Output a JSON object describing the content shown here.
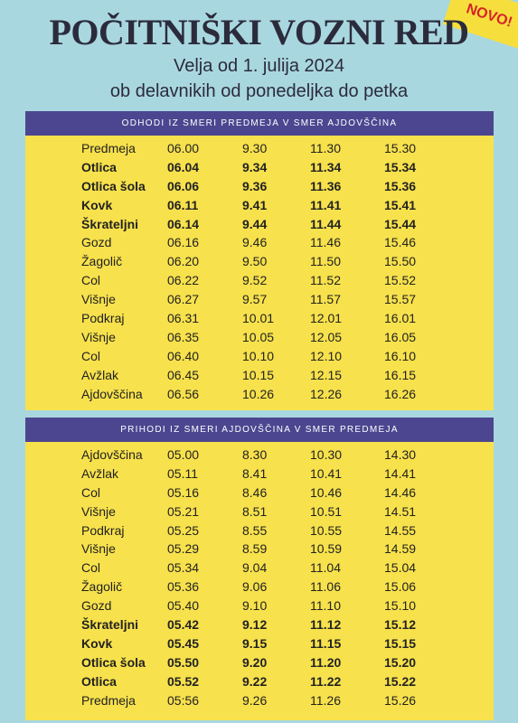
{
  "header": {
    "title": "POČITNIŠKI VOZNI RED",
    "badge": "NOVO!",
    "subtitle": "Velja od 1. julija 2024",
    "days": "ob delavnikih od ponedeljka do petka"
  },
  "tables": [
    {
      "heading": "ODHODI IZ SMERI PREDMEJA V SMER AJDOVŠČINA",
      "rows": [
        {
          "stop": "Predmeja",
          "times": [
            "06.00",
            "9.30",
            "11.30",
            "15.30"
          ],
          "bold": false
        },
        {
          "stop": "Otlica",
          "times": [
            "06.04",
            "9.34",
            "11.34",
            "15.34"
          ],
          "bold": true
        },
        {
          "stop": "Otlica šola",
          "times": [
            "06.06",
            "9.36",
            "11.36",
            "15.36"
          ],
          "bold": true
        },
        {
          "stop": "Kovk",
          "times": [
            "06.11",
            "9.41",
            "11.41",
            "15.41"
          ],
          "bold": true
        },
        {
          "stop": "Škrateljni",
          "times": [
            "06.14",
            "9.44",
            "11.44",
            "15.44"
          ],
          "bold": true
        },
        {
          "stop": "Gozd",
          "times": [
            "06.16",
            "9.46",
            "11.46",
            "15.46"
          ],
          "bold": false
        },
        {
          "stop": "Žagolič",
          "times": [
            "06.20",
            "9.50",
            "11.50",
            "15.50"
          ],
          "bold": false
        },
        {
          "stop": "Col",
          "times": [
            "06.22",
            "9.52",
            "11.52",
            "15.52"
          ],
          "bold": false
        },
        {
          "stop": "Višnje",
          "times": [
            "06.27",
            "9.57",
            "11.57",
            "15.57"
          ],
          "bold": false
        },
        {
          "stop": "Podkraj",
          "times": [
            "06.31",
            "10.01",
            "12.01",
            "16.01"
          ],
          "bold": false
        },
        {
          "stop": "Višnje",
          "times": [
            "06.35",
            "10.05",
            "12.05",
            "16.05"
          ],
          "bold": false
        },
        {
          "stop": "Col",
          "times": [
            "06.40",
            "10.10",
            "12.10",
            "16.10"
          ],
          "bold": false
        },
        {
          "stop": "Avžlak",
          "times": [
            "06.45",
            "10.15",
            "12.15",
            "16.15"
          ],
          "bold": false
        },
        {
          "stop": "Ajdovščina",
          "times": [
            "06.56",
            "10.26",
            "12.26",
            "16.26"
          ],
          "bold": false
        }
      ]
    },
    {
      "heading": "PRIHODI IZ SMERI AJDOVŠČINA V SMER PREDMEJA",
      "rows": [
        {
          "stop": "Ajdovščina",
          "times": [
            "05.00",
            "8.30",
            "10.30",
            "14.30"
          ],
          "bold": false
        },
        {
          "stop": "Avžlak",
          "times": [
            "05.11",
            "8.41",
            "10.41",
            "14.41"
          ],
          "bold": false
        },
        {
          "stop": "Col",
          "times": [
            "05.16",
            "8.46",
            "10.46",
            "14.46"
          ],
          "bold": false
        },
        {
          "stop": "Višnje",
          "times": [
            "05.21",
            "8.51",
            "10.51",
            "14.51"
          ],
          "bold": false
        },
        {
          "stop": "Podkraj",
          "times": [
            "05.25",
            "8.55",
            "10.55",
            "14.55"
          ],
          "bold": false
        },
        {
          "stop": "Višnje",
          "times": [
            "05.29",
            "8.59",
            "10.59",
            "14.59"
          ],
          "bold": false
        },
        {
          "stop": "Col",
          "times": [
            "05.34",
            "9.04",
            "11.04",
            "15.04"
          ],
          "bold": false
        },
        {
          "stop": "Žagolič",
          "times": [
            "05.36",
            "9.06",
            "11.06",
            "15.06"
          ],
          "bold": false
        },
        {
          "stop": "Gozd",
          "times": [
            "05.40",
            "9.10",
            "11.10",
            "15.10"
          ],
          "bold": false
        },
        {
          "stop": "Škrateljni",
          "times": [
            "05.42",
            "9.12",
            "11.12",
            "15.12"
          ],
          "bold": true
        },
        {
          "stop": "Kovk",
          "times": [
            "05.45",
            "9.15",
            "11.15",
            "15.15"
          ],
          "bold": true
        },
        {
          "stop": "Otlica šola",
          "times": [
            "05.50",
            "9.20",
            "11.20",
            "15.20"
          ],
          "bold": true
        },
        {
          "stop": "Otlica",
          "times": [
            "05.52",
            "9.22",
            "11.22",
            "15.22"
          ],
          "bold": true
        },
        {
          "stop": "Predmeja",
          "times": [
            "05:56",
            "9.26",
            "11.26",
            "15.26"
          ],
          "bold": false
        }
      ]
    }
  ]
}
